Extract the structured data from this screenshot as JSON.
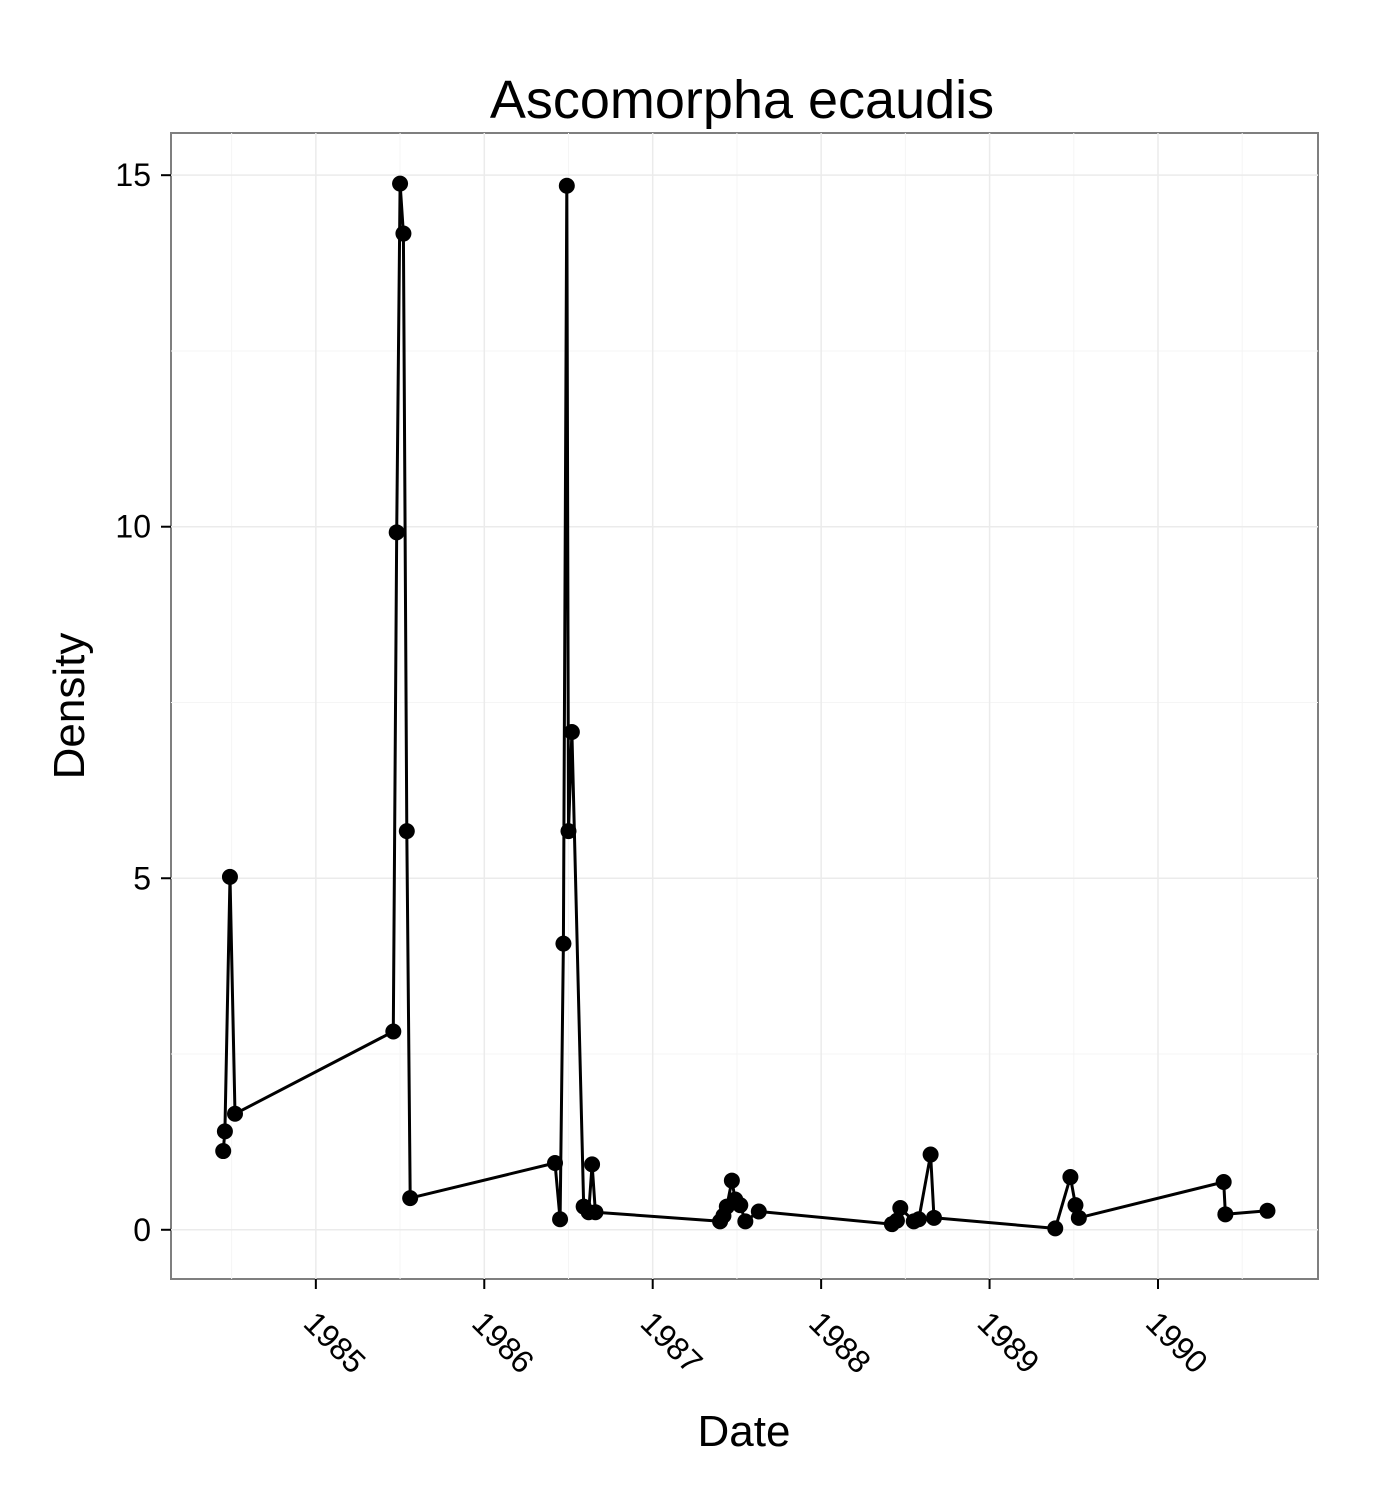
{
  "chart_data": {
    "type": "line",
    "title": "Ascomorpha ecaudis",
    "xlabel": "Date",
    "ylabel": "Density",
    "xlim": [
      1984.14,
      1990.95
    ],
    "ylim": [
      -0.7,
      15.6
    ],
    "grid": true,
    "x_ticks": [
      {
        "value": 1985,
        "label": "1985"
      },
      {
        "value": 1986,
        "label": "1986"
      },
      {
        "value": 1987,
        "label": "1987"
      },
      {
        "value": 1988,
        "label": "1988"
      },
      {
        "value": 1989,
        "label": "1989"
      },
      {
        "value": 1990,
        "label": "1990"
      }
    ],
    "y_ticks": [
      {
        "value": 0,
        "label": "0"
      },
      {
        "value": 5,
        "label": "5"
      },
      {
        "value": 10,
        "label": "10"
      },
      {
        "value": 15,
        "label": "15"
      }
    ],
    "series": [
      {
        "name": "Ascomorpha ecaudis",
        "x": [
          1984.45,
          1984.46,
          1984.49,
          1984.52,
          1985.46,
          1985.48,
          1985.5,
          1985.52,
          1985.54,
          1985.56,
          1986.42,
          1986.45,
          1986.47,
          1986.49,
          1986.5,
          1986.52,
          1986.59,
          1986.62,
          1986.64,
          1986.66,
          1987.4,
          1987.42,
          1987.44,
          1987.47,
          1987.49,
          1987.52,
          1987.55,
          1987.63,
          1988.42,
          1988.45,
          1988.47,
          1988.55,
          1988.58,
          1988.65,
          1988.67,
          1989.39,
          1989.48,
          1989.51,
          1989.53,
          1990.39,
          1990.4,
          1990.65
        ],
        "values": [
          1.12,
          1.4,
          5.02,
          1.65,
          2.82,
          9.92,
          14.88,
          14.17,
          5.67,
          0.45,
          0.95,
          0.15,
          4.07,
          14.85,
          5.67,
          7.08,
          0.33,
          0.25,
          0.93,
          0.25,
          0.12,
          0.2,
          0.33,
          0.7,
          0.43,
          0.35,
          0.12,
          0.26,
          0.08,
          0.13,
          0.31,
          0.12,
          0.15,
          1.07,
          0.17,
          0.02,
          0.75,
          0.35,
          0.17,
          0.68,
          0.22,
          0.27
        ]
      }
    ]
  }
}
